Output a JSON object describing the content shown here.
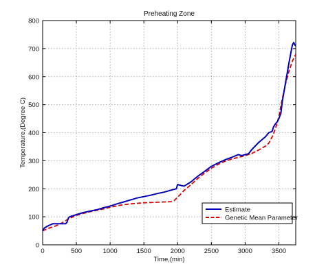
{
  "chart_data": {
    "type": "line",
    "title": "Preheating Zone",
    "xlabel": "Time,(min)",
    "ylabel": "Temperature,(Degree C)",
    "xlim": [
      0,
      3750
    ],
    "ylim": [
      0,
      800
    ],
    "xticks": [
      0,
      500,
      1000,
      1500,
      2000,
      2500,
      3000,
      3500
    ],
    "yticks": [
      0,
      100,
      200,
      300,
      400,
      500,
      600,
      700,
      800
    ],
    "grid": true,
    "legend_position": "lower-right",
    "series": [
      {
        "name": "Estimate",
        "color": "#0000bb",
        "style": "solid",
        "points": [
          [
            0,
            50
          ],
          [
            25,
            60
          ],
          [
            60,
            65
          ],
          [
            100,
            70
          ],
          [
            120,
            72
          ],
          [
            150,
            75
          ],
          [
            200,
            75
          ],
          [
            250,
            75
          ],
          [
            300,
            75
          ],
          [
            340,
            75
          ],
          [
            360,
            80
          ],
          [
            380,
            95
          ],
          [
            400,
            100
          ],
          [
            500,
            108
          ],
          [
            600,
            115
          ],
          [
            700,
            120
          ],
          [
            800,
            125
          ],
          [
            900,
            132
          ],
          [
            1000,
            138
          ],
          [
            1100,
            146
          ],
          [
            1200,
            153
          ],
          [
            1300,
            160
          ],
          [
            1400,
            167
          ],
          [
            1500,
            172
          ],
          [
            1600,
            177
          ],
          [
            1700,
            183
          ],
          [
            1800,
            188
          ],
          [
            1900,
            195
          ],
          [
            1980,
            200
          ],
          [
            2000,
            215
          ],
          [
            2030,
            213
          ],
          [
            2080,
            210
          ],
          [
            2100,
            210
          ],
          [
            2200,
            225
          ],
          [
            2300,
            245
          ],
          [
            2400,
            262
          ],
          [
            2500,
            280
          ],
          [
            2600,
            292
          ],
          [
            2700,
            303
          ],
          [
            2800,
            312
          ],
          [
            2900,
            322
          ],
          [
            2950,
            318
          ],
          [
            3000,
            322
          ],
          [
            3050,
            325
          ],
          [
            3100,
            340
          ],
          [
            3200,
            365
          ],
          [
            3300,
            385
          ],
          [
            3350,
            400
          ],
          [
            3400,
            405
          ],
          [
            3420,
            420
          ],
          [
            3450,
            432
          ],
          [
            3480,
            440
          ],
          [
            3500,
            450
          ],
          [
            3530,
            470
          ],
          [
            3550,
            510
          ],
          [
            3600,
            580
          ],
          [
            3650,
            650
          ],
          [
            3700,
            713
          ],
          [
            3720,
            722
          ],
          [
            3740,
            712
          ],
          [
            3750,
            710
          ]
        ]
      },
      {
        "name": "Genetic Mean Parameter",
        "color": "#dd0000",
        "style": "dashed",
        "points": [
          [
            0,
            50
          ],
          [
            100,
            60
          ],
          [
            200,
            68
          ],
          [
            300,
            80
          ],
          [
            400,
            95
          ],
          [
            500,
            105
          ],
          [
            600,
            112
          ],
          [
            700,
            118
          ],
          [
            800,
            123
          ],
          [
            900,
            128
          ],
          [
            1000,
            134
          ],
          [
            1100,
            139
          ],
          [
            1200,
            143
          ],
          [
            1300,
            146
          ],
          [
            1400,
            148
          ],
          [
            1500,
            150
          ],
          [
            1600,
            151
          ],
          [
            1700,
            152
          ],
          [
            1800,
            153
          ],
          [
            1900,
            154
          ],
          [
            1950,
            158
          ],
          [
            2000,
            170
          ],
          [
            2100,
            195
          ],
          [
            2200,
            215
          ],
          [
            2300,
            237
          ],
          [
            2400,
            256
          ],
          [
            2500,
            273
          ],
          [
            2600,
            287
          ],
          [
            2700,
            298
          ],
          [
            2800,
            306
          ],
          [
            2900,
            312
          ],
          [
            3000,
            318
          ],
          [
            3100,
            326
          ],
          [
            3200,
            338
          ],
          [
            3300,
            352
          ],
          [
            3350,
            362
          ],
          [
            3400,
            385
          ],
          [
            3450,
            415
          ],
          [
            3500,
            458
          ],
          [
            3550,
            520
          ],
          [
            3600,
            575
          ],
          [
            3650,
            620
          ],
          [
            3700,
            655
          ],
          [
            3750,
            680
          ]
        ]
      }
    ]
  }
}
